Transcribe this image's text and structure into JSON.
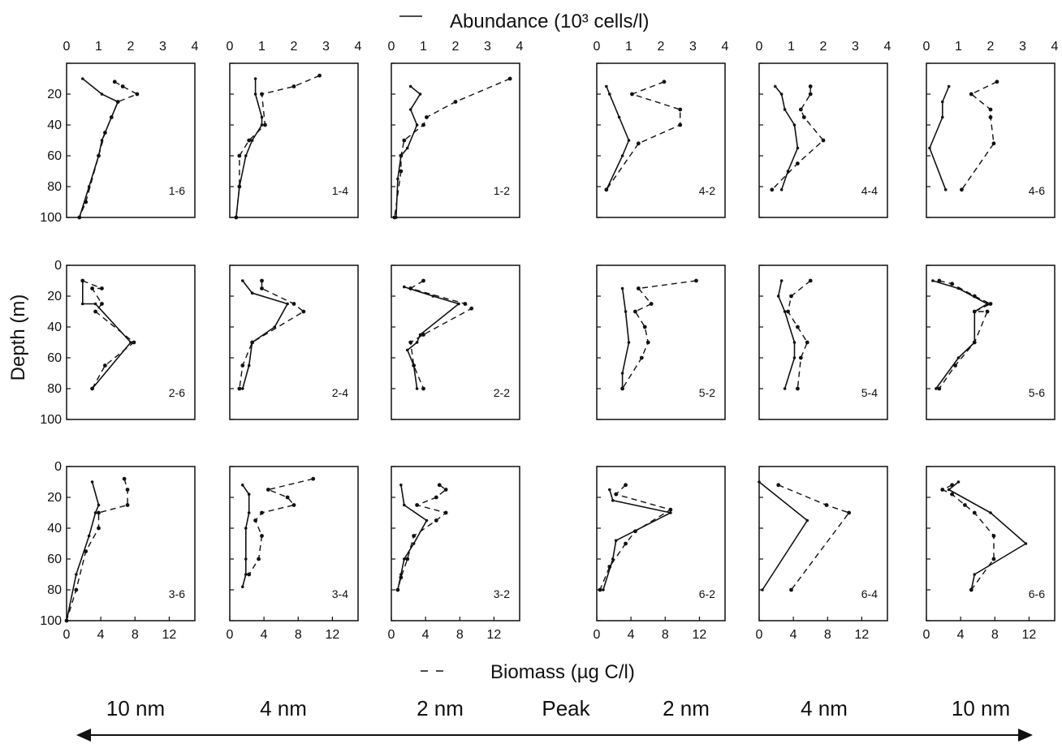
{
  "legend": {
    "abundance_label": "Abundance (10³ cells/l)",
    "biomass_label": "Biomass (µg C/l)"
  },
  "y_axis_label": "Depth (m)",
  "distance_labels": [
    "10 nm",
    "4 nm",
    "2 nm",
    "Peak",
    "2 nm",
    "4 nm",
    "10 nm"
  ],
  "colors": {
    "ink": "#111111",
    "background": "#ffffff"
  },
  "chart_data": {
    "type": "line",
    "abundance_axis": {
      "label": "Abundance (10³ cells/l)",
      "range": [
        0,
        4
      ],
      "ticks": [
        "0",
        "1",
        "2",
        "3",
        "4"
      ],
      "position": "top"
    },
    "biomass_axis": {
      "label": "Biomass (µg C/l)",
      "range": [
        0,
        15
      ],
      "ticks": [
        "0",
        "4",
        "8",
        "12"
      ],
      "position": "bottom"
    },
    "depth_axis": {
      "label": "Depth (m)",
      "range": [
        0,
        100
      ],
      "inverted": true,
      "ticks": [
        "0",
        "20",
        "40",
        "60",
        "80",
        "100"
      ]
    },
    "panels": [
      {
        "id": "1-6",
        "abundance": [
          [
            0.5,
            10
          ],
          [
            1.1,
            20
          ],
          [
            1.6,
            25
          ],
          [
            1.4,
            35
          ],
          [
            1.1,
            50
          ],
          [
            1.0,
            60
          ],
          [
            0.7,
            80
          ],
          [
            0.4,
            100
          ]
        ],
        "biomass": [
          [
            1.5,
            12
          ],
          [
            1.75,
            15
          ],
          [
            2.2,
            20
          ],
          [
            1.6,
            25
          ],
          [
            1.4,
            35
          ],
          [
            1.2,
            45
          ],
          [
            1.0,
            60
          ],
          [
            0.6,
            90
          ],
          [
            0.4,
            100
          ]
        ]
      },
      {
        "id": "1-4",
        "abundance": [
          [
            0.8,
            10
          ],
          [
            0.8,
            20
          ],
          [
            1.0,
            35
          ],
          [
            1.0,
            40
          ],
          [
            0.7,
            50
          ],
          [
            0.5,
            60
          ],
          [
            0.3,
            80
          ],
          [
            0.2,
            100
          ]
        ],
        "biomass": [
          [
            2.8,
            8
          ],
          [
            2.0,
            15
          ],
          [
            1.0,
            20
          ],
          [
            1.1,
            40
          ],
          [
            0.6,
            50
          ],
          [
            0.3,
            60
          ],
          [
            0.3,
            80
          ],
          [
            0.2,
            100
          ]
        ]
      },
      {
        "id": "1-2",
        "abundance": [
          [
            0.6,
            15
          ],
          [
            0.9,
            20
          ],
          [
            0.6,
            30
          ],
          [
            0.8,
            40
          ],
          [
            0.5,
            55
          ],
          [
            0.3,
            60
          ],
          [
            0.2,
            75
          ],
          [
            0.15,
            100
          ]
        ],
        "biomass": [
          [
            3.7,
            10
          ],
          [
            2.0,
            25
          ],
          [
            1.1,
            35
          ],
          [
            1.0,
            40
          ],
          [
            0.4,
            50
          ],
          [
            0.3,
            60
          ],
          [
            0.3,
            70
          ],
          [
            0.1,
            100
          ]
        ]
      },
      {
        "id": "4-2",
        "abundance": [
          [
            0.3,
            15
          ],
          [
            0.4,
            20
          ],
          [
            0.7,
            35
          ],
          [
            1.0,
            50
          ],
          [
            0.8,
            60
          ],
          [
            0.3,
            82
          ]
        ],
        "biomass": [
          [
            2.1,
            12
          ],
          [
            1.1,
            20
          ],
          [
            2.6,
            30
          ],
          [
            2.6,
            40
          ],
          [
            1.3,
            52
          ],
          [
            0.3,
            82
          ]
        ]
      },
      {
        "id": "4-4",
        "abundance": [
          [
            0.5,
            15
          ],
          [
            0.7,
            20
          ],
          [
            0.8,
            30
          ],
          [
            1.1,
            40
          ],
          [
            1.2,
            55
          ],
          [
            0.9,
            70
          ],
          [
            0.7,
            82
          ]
        ],
        "biomass": [
          [
            1.6,
            15
          ],
          [
            1.6,
            20
          ],
          [
            1.3,
            30
          ],
          [
            1.4,
            35
          ],
          [
            2.0,
            50
          ],
          [
            1.2,
            65
          ],
          [
            0.4,
            82
          ]
        ]
      },
      {
        "id": "4-6",
        "abundance": [
          [
            0.7,
            15
          ],
          [
            0.5,
            25
          ],
          [
            0.5,
            35
          ],
          [
            0.1,
            55
          ],
          [
            0.6,
            82
          ]
        ],
        "biomass": [
          [
            2.2,
            12
          ],
          [
            1.4,
            20
          ],
          [
            2.0,
            30
          ],
          [
            2.0,
            35
          ],
          [
            2.1,
            52
          ],
          [
            1.1,
            82
          ]
        ]
      },
      {
        "id": "2-6",
        "abundance": [
          [
            0.5,
            10
          ],
          [
            0.5,
            25
          ],
          [
            0.9,
            25
          ],
          [
            2.0,
            50
          ],
          [
            0.8,
            80
          ]
        ],
        "biomass": [
          [
            0.5,
            10
          ],
          [
            1.1,
            15
          ],
          [
            0.8,
            15
          ],
          [
            1.1,
            25
          ],
          [
            0.9,
            30
          ],
          [
            2.1,
            50
          ],
          [
            1.2,
            65
          ],
          [
            0.8,
            80
          ]
        ]
      },
      {
        "id": "2-4",
        "abundance": [
          [
            0.4,
            10
          ],
          [
            0.7,
            18
          ],
          [
            1.8,
            25
          ],
          [
            1.4,
            40
          ],
          [
            0.7,
            50
          ],
          [
            0.6,
            65
          ],
          [
            0.4,
            80
          ]
        ],
        "biomass": [
          [
            1.0,
            10
          ],
          [
            1.0,
            15
          ],
          [
            2.0,
            25
          ],
          [
            2.3,
            30
          ],
          [
            0.7,
            50
          ],
          [
            0.4,
            65
          ],
          [
            0.3,
            80
          ]
        ]
      },
      {
        "id": "2-2",
        "abundance": [
          [
            0.4,
            14
          ],
          [
            1.3,
            20
          ],
          [
            2.1,
            25
          ],
          [
            0.9,
            45
          ],
          [
            0.8,
            50
          ],
          [
            0.5,
            55
          ],
          [
            0.7,
            65
          ],
          [
            0.8,
            80
          ]
        ],
        "biomass": [
          [
            1.0,
            10
          ],
          [
            0.6,
            15
          ],
          [
            2.3,
            25
          ],
          [
            2.5,
            28
          ],
          [
            1.0,
            45
          ],
          [
            0.6,
            50
          ],
          [
            0.7,
            65
          ],
          [
            1.0,
            80
          ]
        ]
      },
      {
        "id": "5-2",
        "abundance": [
          [
            0.8,
            15
          ],
          [
            0.9,
            30
          ],
          [
            1.0,
            50
          ],
          [
            0.8,
            70
          ],
          [
            0.8,
            80
          ]
        ],
        "biomass": [
          [
            3.1,
            10
          ],
          [
            1.3,
            15
          ],
          [
            1.7,
            25
          ],
          [
            1.2,
            30
          ],
          [
            1.5,
            40
          ],
          [
            1.6,
            50
          ],
          [
            1.4,
            60
          ],
          [
            0.8,
            80
          ]
        ]
      },
      {
        "id": "5-4",
        "abundance": [
          [
            0.7,
            10
          ],
          [
            0.6,
            20
          ],
          [
            0.8,
            30
          ],
          [
            1.1,
            50
          ],
          [
            1.1,
            60
          ],
          [
            0.8,
            80
          ]
        ],
        "biomass": [
          [
            1.6,
            10
          ],
          [
            1.0,
            20
          ],
          [
            0.9,
            30
          ],
          [
            1.2,
            40
          ],
          [
            1.5,
            50
          ],
          [
            1.3,
            60
          ],
          [
            1.2,
            80
          ]
        ]
      },
      {
        "id": "5-6",
        "abundance": [
          [
            0.2,
            10
          ],
          [
            1.0,
            15
          ],
          [
            1.9,
            25
          ],
          [
            1.5,
            30
          ],
          [
            1.5,
            50
          ],
          [
            1.0,
            60
          ],
          [
            0.3,
            80
          ]
        ],
        "biomass": [
          [
            0.4,
            10
          ],
          [
            0.8,
            12
          ],
          [
            1.5,
            20
          ],
          [
            2.0,
            25
          ],
          [
            1.5,
            30
          ],
          [
            1.9,
            30
          ],
          [
            1.5,
            50
          ],
          [
            0.9,
            65
          ],
          [
            0.4,
            80
          ]
        ]
      },
      {
        "id": "3-6",
        "abundance": [
          [
            0.8,
            10
          ],
          [
            1.0,
            25
          ],
          [
            0.9,
            30
          ],
          [
            0.7,
            45
          ],
          [
            0.3,
            70
          ],
          [
            0.0,
            100
          ]
        ],
        "biomass": [
          [
            1.8,
            8
          ],
          [
            1.9,
            15
          ],
          [
            1.9,
            25
          ],
          [
            1.0,
            30
          ],
          [
            1.0,
            40
          ],
          [
            0.6,
            55
          ],
          [
            0.3,
            80
          ],
          [
            0.0,
            100
          ]
        ]
      },
      {
        "id": "3-4",
        "abundance": [
          [
            0.4,
            12
          ],
          [
            0.6,
            18
          ],
          [
            0.6,
            30
          ],
          [
            0.5,
            40
          ],
          [
            0.5,
            60
          ],
          [
            0.5,
            70
          ],
          [
            0.4,
            78
          ]
        ],
        "biomass": [
          [
            2.6,
            8
          ],
          [
            1.2,
            15
          ],
          [
            1.8,
            20
          ],
          [
            2.0,
            25
          ],
          [
            1.0,
            30
          ],
          [
            0.8,
            35
          ],
          [
            1.0,
            45
          ],
          [
            0.9,
            60
          ],
          [
            0.6,
            70
          ]
        ]
      },
      {
        "id": "3-2",
        "abundance": [
          [
            0.3,
            12
          ],
          [
            0.4,
            25
          ],
          [
            1.1,
            35
          ],
          [
            0.7,
            50
          ],
          [
            0.4,
            60
          ],
          [
            0.3,
            70
          ],
          [
            0.2,
            80
          ]
        ],
        "biomass": [
          [
            1.5,
            12
          ],
          [
            1.7,
            15
          ],
          [
            1.4,
            20
          ],
          [
            0.8,
            25
          ],
          [
            1.7,
            30
          ],
          [
            1.4,
            35
          ],
          [
            0.7,
            45
          ],
          [
            0.5,
            60
          ],
          [
            0.3,
            72
          ],
          [
            0.2,
            80
          ]
        ]
      },
      {
        "id": "6-2",
        "abundance": [
          [
            0.4,
            15
          ],
          [
            0.5,
            22
          ],
          [
            2.3,
            30
          ],
          [
            0.6,
            48
          ],
          [
            0.5,
            60
          ],
          [
            0.2,
            80
          ]
        ],
        "biomass": [
          [
            0.9,
            12
          ],
          [
            0.6,
            18
          ],
          [
            2.3,
            28
          ],
          [
            1.2,
            42
          ],
          [
            0.9,
            50
          ],
          [
            0.4,
            65
          ],
          [
            0.1,
            80
          ]
        ]
      },
      {
        "id": "6-4",
        "abundance": [
          [
            0.0,
            10
          ],
          [
            1.5,
            35
          ],
          [
            0.1,
            80
          ]
        ],
        "biomass": [
          [
            0.6,
            12
          ],
          [
            2.1,
            25
          ],
          [
            2.8,
            30
          ],
          [
            1.0,
            80
          ]
        ]
      },
      {
        "id": "6-6",
        "abundance": [
          [
            1.0,
            10
          ],
          [
            0.7,
            15
          ],
          [
            2.0,
            30
          ],
          [
            3.1,
            50
          ],
          [
            1.5,
            70
          ],
          [
            1.4,
            80
          ]
        ],
        "biomass": [
          [
            0.8,
            12
          ],
          [
            0.5,
            15
          ],
          [
            0.8,
            18
          ],
          [
            1.2,
            25
          ],
          [
            1.5,
            30
          ],
          [
            2.1,
            45
          ],
          [
            2.1,
            60
          ],
          [
            1.4,
            80
          ]
        ]
      }
    ]
  }
}
